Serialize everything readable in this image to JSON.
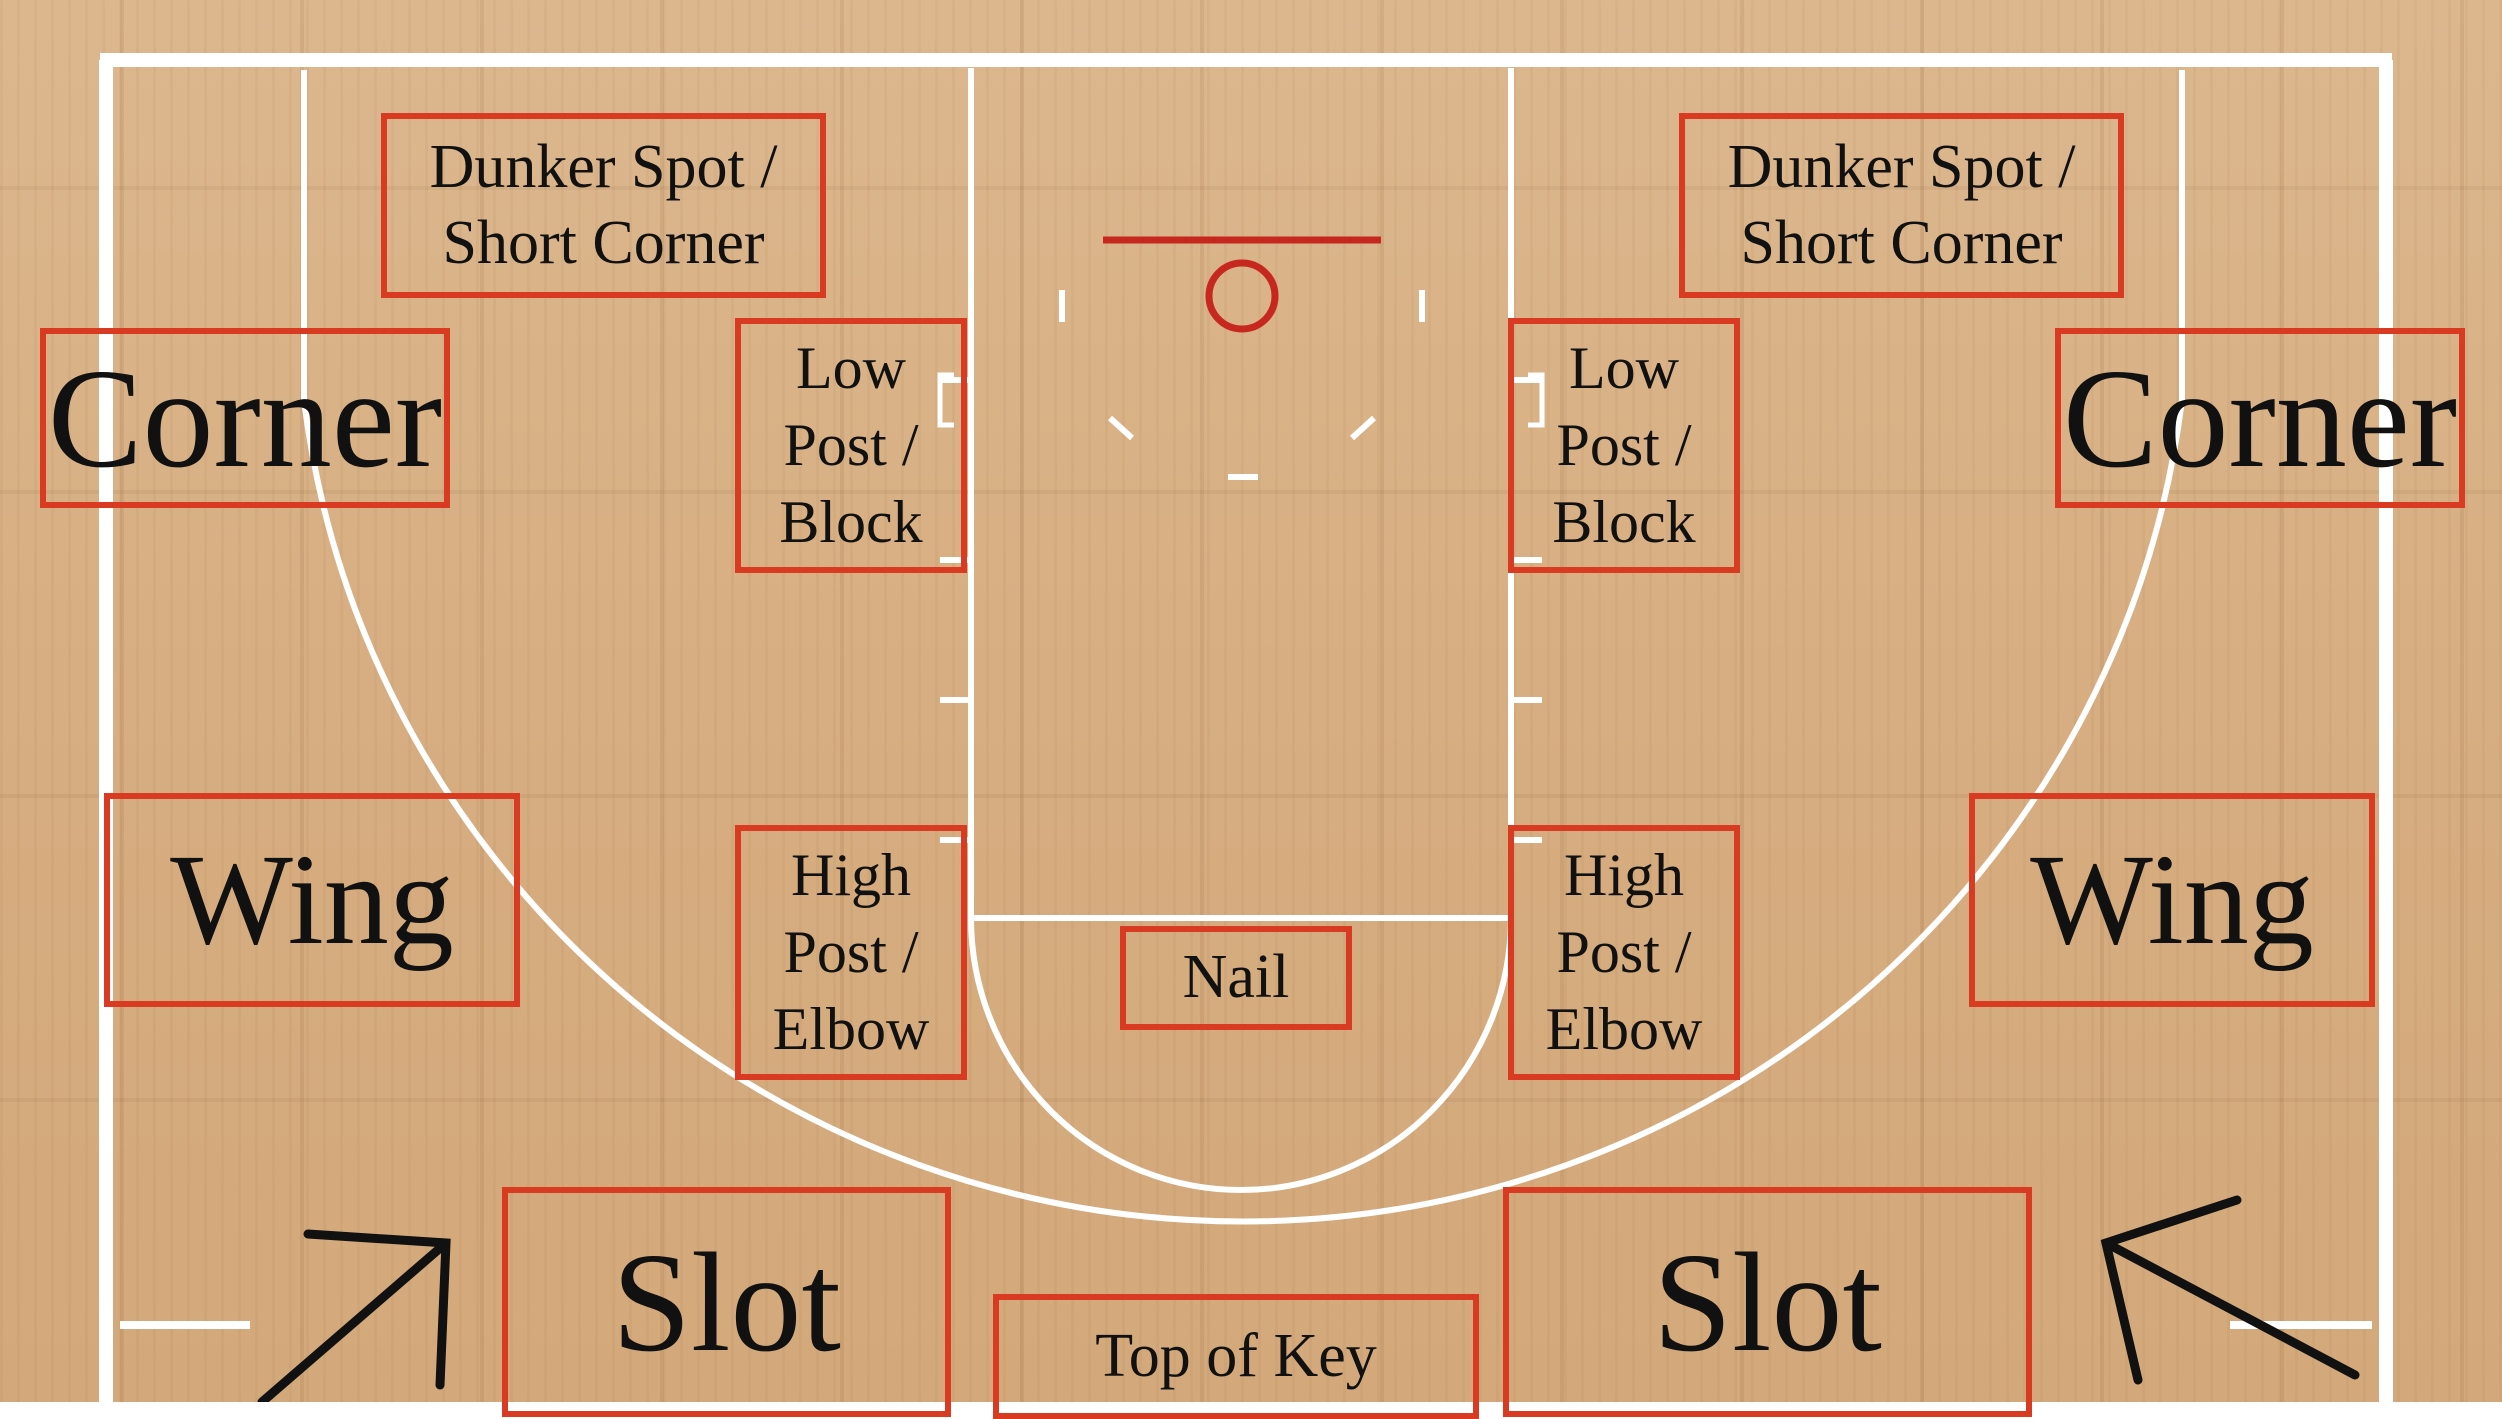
{
  "colors": {
    "court_lines": "#ffffff",
    "rim_and_backboard": "#c6281f",
    "label_border": "#d83a22",
    "label_text": "#111111",
    "arrow": "#111111",
    "wood": "#d9b287"
  },
  "labels": {
    "dunker_left": "Dunker Spot /\nShort Corner",
    "dunker_right": "Dunker Spot /\nShort Corner",
    "corner_left": "Corner",
    "corner_right": "Corner",
    "low_post_left": "Low\nPost /\nBlock",
    "low_post_right": "Low\nPost /\nBlock",
    "wing_left": "Wing",
    "wing_right": "Wing",
    "high_post_left": "High\nPost /\nElbow",
    "high_post_right": "High\nPost /\nElbow",
    "nail": "Nail",
    "slot_left": "Slot",
    "slot_right": "Slot",
    "top_of_key": "Top of Key"
  },
  "icons": {
    "arrow_left": "arrow-up-right-icon",
    "arrow_right": "arrow-up-left-icon",
    "hoop": "basketball-hoop-icon"
  }
}
